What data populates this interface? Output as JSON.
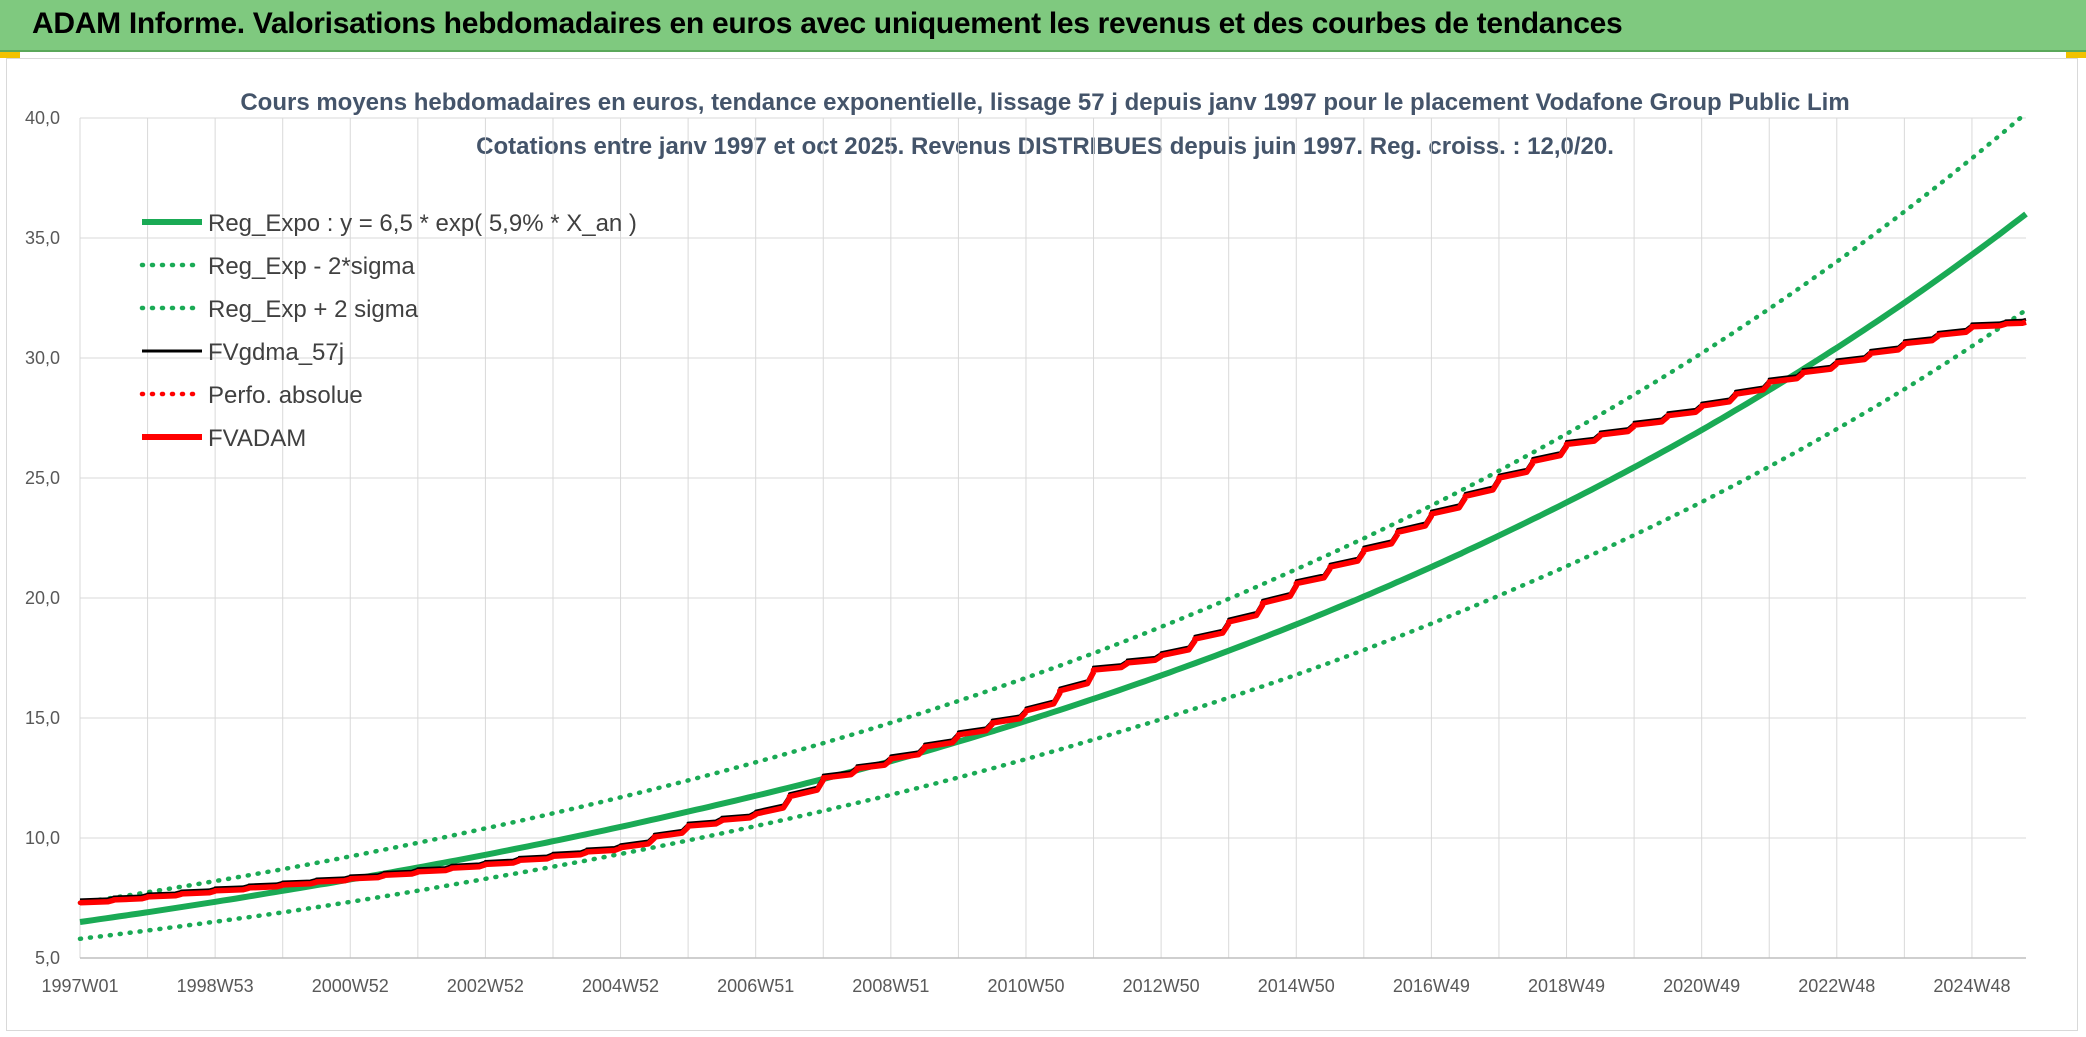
{
  "header": {
    "title": "ADAM Informe. Valorisations hebdomadaires en euros avec uniquement les revenus et des courbes de tendances"
  },
  "colors": {
    "banner": "#7fc97f",
    "trend": "#1aaa55",
    "price": "#000000",
    "adam": "#ff0000",
    "grid": "#d9d9d9"
  },
  "chart_data": {
    "type": "line",
    "title": [
      "Cours moyens hebdomadaires en euros, tendance exponentielle, lissage 57 j depuis janv 1997 pour le placement Vodafone Group Public Lim",
      "Cotations entre janv 1997 et oct 2025. Revenus DISTRIBUES depuis juin 1997. Reg. croiss. : 12,0/20."
    ],
    "x_tick_labels": [
      "1997W01",
      "1998W53",
      "2000W52",
      "2002W52",
      "2004W52",
      "2006W51",
      "2008W51",
      "2010W50",
      "2012W50",
      "2014W50",
      "2016W49",
      "2018W49",
      "2020W49",
      "2022W48",
      "2024W48"
    ],
    "x_range": [
      "1997W01",
      "2025W43"
    ],
    "ylim": [
      5,
      40
    ],
    "y_ticks": [
      "5,0",
      "10,0",
      "15,0",
      "20,0",
      "25,0",
      "30,0",
      "35,0",
      "40,0"
    ],
    "grid": true,
    "legend_position": "top-left",
    "series": [
      {
        "name": "Reg_Expo : y = 6,5 * exp( 5,9% *  X_an )",
        "style": "solid-thick",
        "color": "#1aaa55",
        "years": [
          1997,
          2000,
          2003,
          2006,
          2009,
          2012,
          2015,
          2018,
          2021,
          2024,
          2025.8
        ],
        "values": [
          6.5,
          7.8,
          9.3,
          11.1,
          13.2,
          15.8,
          18.9,
          22.6,
          27.0,
          32.3,
          36.0
        ]
      },
      {
        "name": "Reg_Exp - 2*sigma",
        "style": "dotted",
        "color": "#1aaa55",
        "years": [
          1997,
          2000,
          2003,
          2006,
          2009,
          2012,
          2015,
          2018,
          2021,
          2024,
          2025.8
        ],
        "values": [
          5.8,
          6.9,
          8.3,
          9.9,
          11.8,
          14.1,
          16.8,
          20.1,
          24.0,
          28.7,
          32.0
        ]
      },
      {
        "name": "Reg_Exp + 2 sigma",
        "style": "dotted",
        "color": "#1aaa55",
        "years": [
          1997,
          2000,
          2003,
          2006,
          2009,
          2012,
          2015,
          2018,
          2021,
          2024,
          2025.8
        ],
        "values": [
          7.3,
          8.7,
          10.4,
          12.4,
          14.8,
          17.7,
          21.2,
          25.3,
          30.2,
          36.1,
          40.2
        ]
      },
      {
        "name": "FVgdma_57j",
        "style": "solid",
        "color": "#000000",
        "years": [
          1997,
          1999,
          2001,
          2003,
          2005,
          2006,
          2007,
          2008,
          2009,
          2010,
          2011,
          2012,
          2013,
          2014,
          2015,
          2016,
          2017,
          2018,
          2019,
          2020,
          2021,
          2022,
          2023,
          2024,
          2025,
          2025.8
        ],
        "values": [
          7.3,
          7.8,
          8.3,
          8.9,
          9.6,
          10.5,
          11.0,
          12.5,
          13.3,
          14.3,
          15.3,
          17.0,
          17.6,
          19.0,
          20.6,
          22.0,
          23.5,
          25.0,
          26.4,
          27.2,
          28.0,
          29.0,
          29.8,
          30.6,
          31.3,
          31.5
        ]
      },
      {
        "name": "Perfo. absolue",
        "style": "dotted",
        "color": "#ff0000",
        "years": [
          1997,
          1999,
          2001,
          2003,
          2005,
          2006,
          2007,
          2008,
          2009,
          2010,
          2011,
          2012,
          2013,
          2014,
          2015,
          2016,
          2017,
          2018,
          2019,
          2020,
          2021,
          2022,
          2023,
          2024,
          2025,
          2025.8
        ],
        "values": [
          7.3,
          7.8,
          8.3,
          8.9,
          9.6,
          10.5,
          11.0,
          12.5,
          13.3,
          14.3,
          15.3,
          17.0,
          17.6,
          19.0,
          20.6,
          22.0,
          23.5,
          25.0,
          26.4,
          27.2,
          28.0,
          29.0,
          29.8,
          30.6,
          31.3,
          31.5
        ]
      },
      {
        "name": "FVADAM",
        "style": "solid-thick",
        "color": "#ff0000",
        "years": [
          1997,
          1999,
          2001,
          2003,
          2005,
          2006,
          2007,
          2008,
          2009,
          2010,
          2011,
          2012,
          2013,
          2014,
          2015,
          2016,
          2017,
          2018,
          2019,
          2020,
          2021,
          2022,
          2023,
          2024,
          2025,
          2025.8
        ],
        "values": [
          7.3,
          7.8,
          8.3,
          8.9,
          9.6,
          10.5,
          11.0,
          12.5,
          13.3,
          14.3,
          15.3,
          17.0,
          17.6,
          19.0,
          20.6,
          22.0,
          23.5,
          25.0,
          26.4,
          27.2,
          28.0,
          29.0,
          29.8,
          30.6,
          31.3,
          31.5
        ]
      }
    ]
  }
}
